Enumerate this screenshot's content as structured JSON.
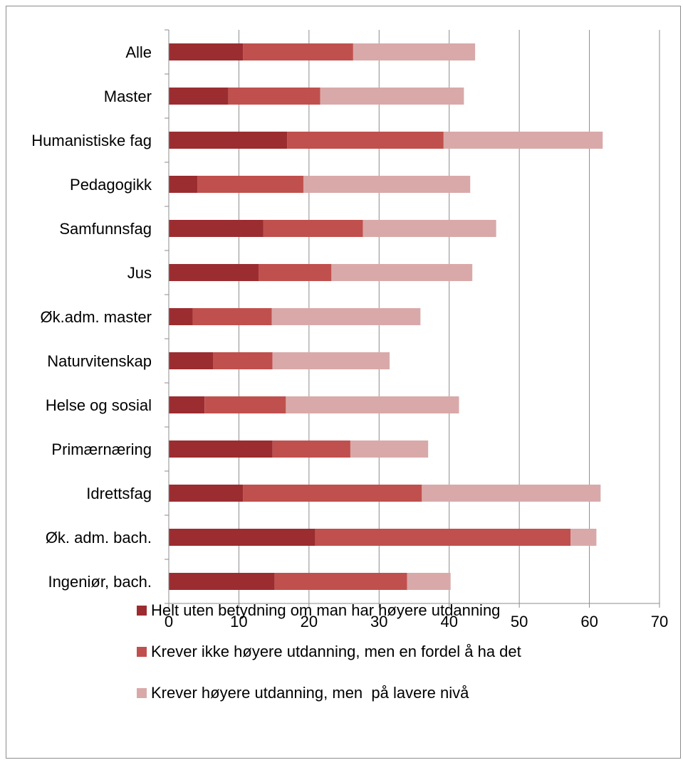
{
  "chart_data": {
    "type": "bar",
    "orientation": "horizontal",
    "stacked": true,
    "categories": [
      "Alle",
      "Master",
      "Humanistiske fag",
      "Pedagogikk",
      "Samfunnsfag",
      "Jus",
      "Øk.adm. master",
      "Naturvitenskap",
      "Helse og sosial",
      "Primærnæring",
      "Idrettsfag",
      "Øk. adm. bach.",
      "Ingeniør, bach."
    ],
    "series": [
      {
        "name": "Helt uten betydning om man har høyere utdanning",
        "color": "#9b2d30",
        "values": [
          10.6,
          8.5,
          16.9,
          4.1,
          13.5,
          12.8,
          3.4,
          6.3,
          5.1,
          14.8,
          10.6,
          20.9,
          15.1
        ]
      },
      {
        "name": "Krever ikke høyere utdanning, men en fordel å ha det",
        "color": "#c0504d",
        "values": [
          15.7,
          13.1,
          22.3,
          15.1,
          14.2,
          10.4,
          11.3,
          8.5,
          11.6,
          11.1,
          25.5,
          36.4,
          18.9
        ]
      },
      {
        "name": "Krever høyere utdanning, men  på lavere nivå",
        "color": "#d9a9a9",
        "values": [
          17.4,
          20.5,
          22.7,
          23.8,
          19.0,
          20.1,
          21.2,
          16.7,
          24.7,
          11.1,
          25.5,
          3.7,
          6.2
        ]
      }
    ],
    "xlim": [
      0,
      70
    ],
    "xticks": [
      "0",
      "10",
      "20",
      "30",
      "40",
      "50",
      "60",
      "70"
    ],
    "grid": "vertical",
    "legend_position": "bottom"
  }
}
